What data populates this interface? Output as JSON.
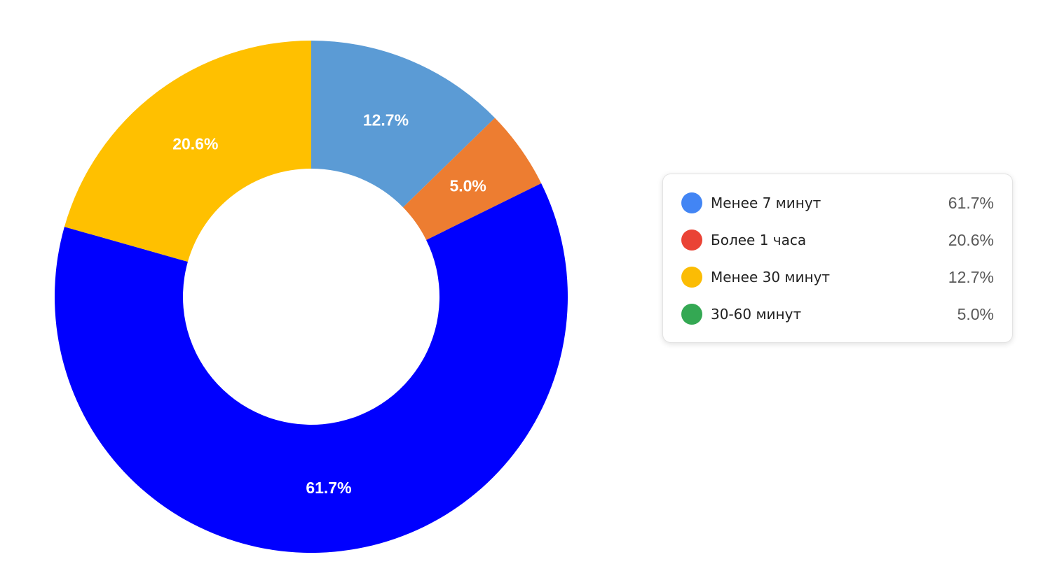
{
  "chart_data": {
    "type": "pie",
    "donut": true,
    "slices": [
      {
        "label": "12.7%",
        "value": 12.7,
        "color": "#5B9BD5"
      },
      {
        "label": "5.0%",
        "value": 5.0,
        "color": "#ED7D31"
      },
      {
        "label": "61.7%",
        "value": 61.7,
        "color": "#0000FF"
      },
      {
        "label": "20.6%",
        "value": 20.6,
        "color": "#FFC000"
      }
    ],
    "legend": {
      "placement": "right",
      "items": [
        {
          "label": "Менее 7 минут",
          "value": "61.7%",
          "color": "#4285F4"
        },
        {
          "label": "Более 1 часа",
          "value": "20.6%",
          "color": "#EA4335"
        },
        {
          "label": "Менее 30 минут",
          "value": "12.7%",
          "color": "#FBBC04"
        },
        {
          "label": "30-60 минут",
          "value": "5.0%",
          "color": "#34A853"
        }
      ]
    }
  }
}
